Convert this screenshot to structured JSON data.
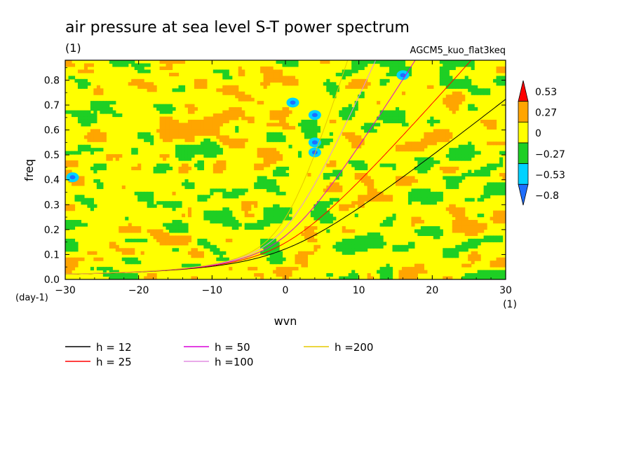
{
  "chart_data": {
    "type": "heatmap",
    "title": "air pressure at sea level S-T power spectrum",
    "title_units": "(1)",
    "subtitle": "AGCM5_kuo_flat3keq",
    "xlabel": "wvn",
    "xunits": "(1)",
    "ylabel": "freq",
    "yunits": "(day-1)",
    "xlim": [
      -30,
      30
    ],
    "ylim": [
      0,
      0.88
    ],
    "x_ticks": [
      -30,
      -20,
      -10,
      0,
      10,
      20,
      30
    ],
    "x_tick_labels": [
      "−30",
      "−20",
      "−10",
      "0",
      "10",
      "20",
      "30"
    ],
    "y_ticks": [
      0.0,
      0.1,
      0.2,
      0.3,
      0.4,
      0.5,
      0.6,
      0.7,
      0.8
    ],
    "y_tick_labels": [
      "0.0",
      "0.1",
      "0.2",
      "0.3",
      "0.4",
      "0.5",
      "0.6",
      "0.7",
      "0.8"
    ],
    "colorbar": {
      "levels": [
        -0.8,
        -0.53,
        -0.27,
        0,
        0.27,
        0.53
      ],
      "labels": [
        "−0.8",
        "−0.53",
        "−0.27",
        "0",
        "0.27",
        "0.53"
      ],
      "colors": [
        "#1e6eff",
        "#00d2ff",
        "#1ecf24",
        "#ffff00",
        "#ffa500",
        "#ff0000"
      ]
    },
    "dispersion_curves": [
      {
        "label": "h = 12",
        "h": 12,
        "color": "#000000"
      },
      {
        "label": "h = 25",
        "h": 25,
        "color": "#ff0000"
      },
      {
        "label": "h = 50",
        "h": 50,
        "color": "#d800d8"
      },
      {
        "label": "h =100",
        "h": 100,
        "color": "#e28ee2"
      },
      {
        "label": "h =200",
        "h": 200,
        "color": "#e6c800"
      }
    ],
    "blue_spots": [
      {
        "wvn": 1,
        "freq": 0.71
      },
      {
        "wvn": 4,
        "freq": 0.66
      },
      {
        "wvn": 4,
        "freq": 0.55
      },
      {
        "wvn": 4,
        "freq": 0.51
      },
      {
        "wvn": -29,
        "freq": 0.41
      },
      {
        "wvn": 16,
        "freq": 0.82
      }
    ]
  }
}
